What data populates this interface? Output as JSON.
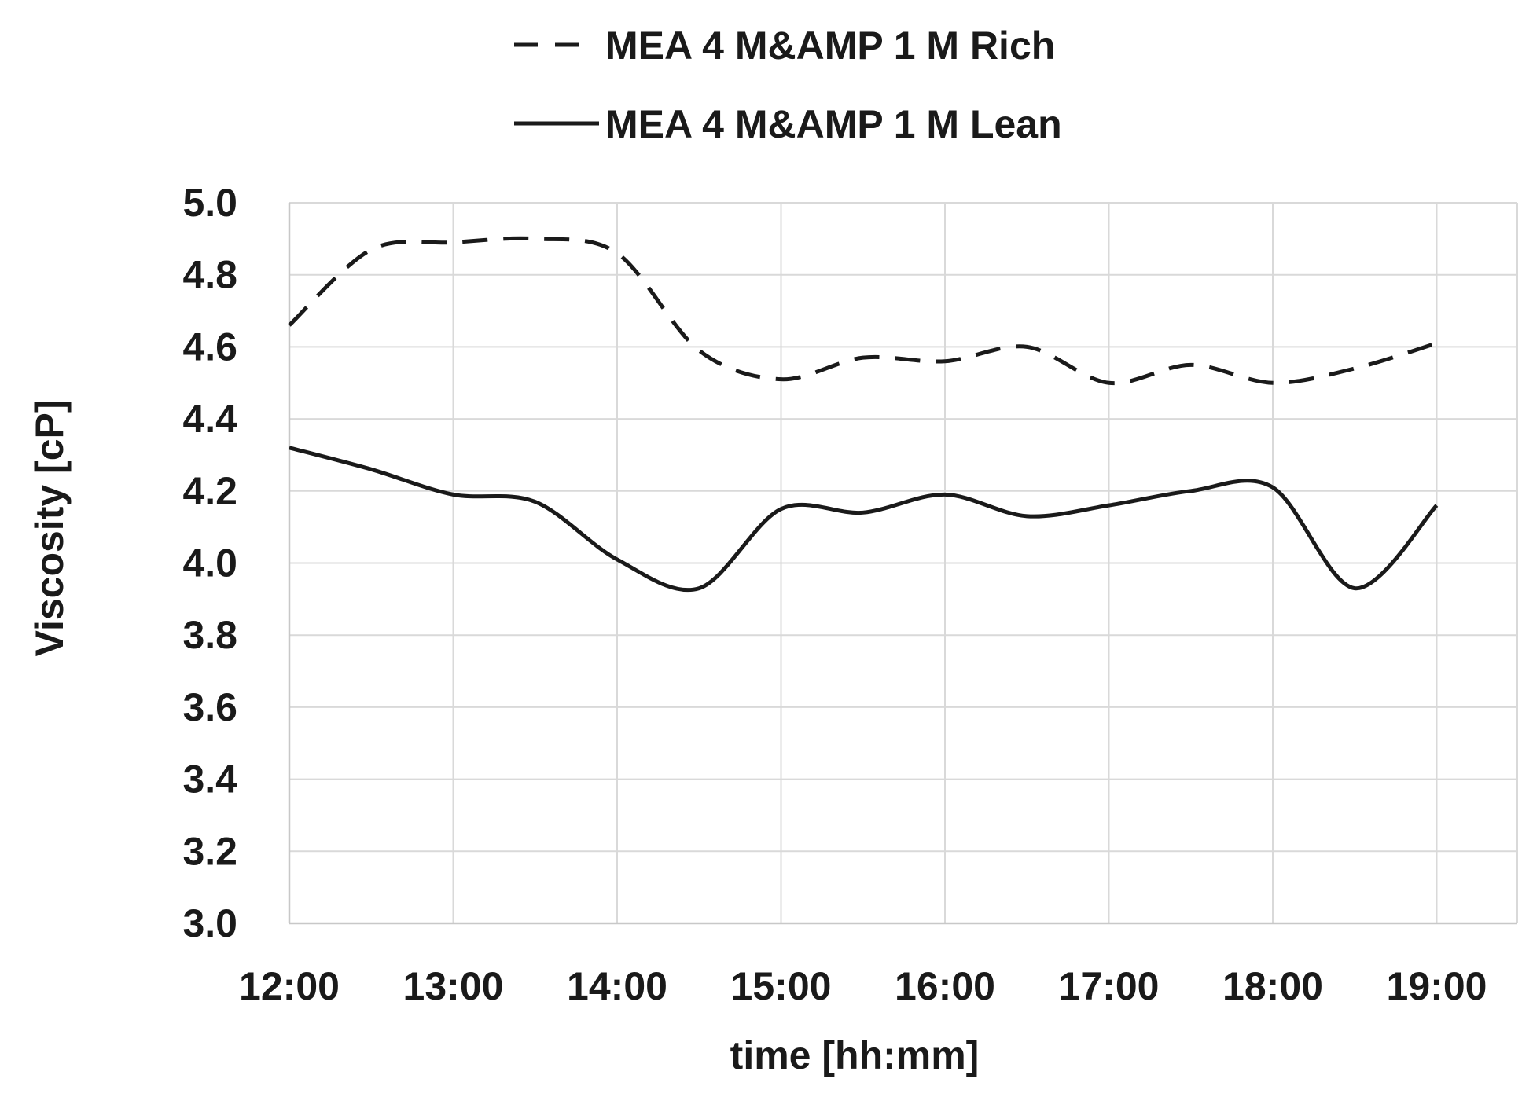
{
  "chart_data": {
    "type": "line",
    "xlabel": "time  [hh:mm]",
    "ylabel": "Viscosity [cP]",
    "x_ticks": [
      "12:00",
      "13:00",
      "14:00",
      "15:00",
      "16:00",
      "17:00",
      "18:00",
      "19:00"
    ],
    "y_ticks": [
      "3.0",
      "3.2",
      "3.4",
      "3.6",
      "3.8",
      "4.0",
      "4.2",
      "4.4",
      "4.6",
      "4.8",
      "5.0"
    ],
    "xlim": [
      "12:00",
      "19:00"
    ],
    "ylim": [
      3.0,
      5.0
    ],
    "grid": true,
    "legend_position": "top",
    "series": [
      {
        "name": "MEA 4 M&AMP 1 M Rich",
        "line_style": "dashed",
        "color": "#1a1a1a",
        "x": [
          "12:00",
          "12:30",
          "13:00",
          "13:30",
          "14:00",
          "14:30",
          "15:00",
          "15:30",
          "16:00",
          "16:30",
          "17:00",
          "17:30",
          "18:00",
          "18:30",
          "19:00"
        ],
        "y": [
          4.66,
          4.87,
          4.89,
          4.9,
          4.86,
          4.59,
          4.51,
          4.57,
          4.56,
          4.6,
          4.5,
          4.55,
          4.5,
          4.54,
          4.61
        ]
      },
      {
        "name": "MEA 4 M&AMP 1 M Lean",
        "line_style": "solid",
        "color": "#1a1a1a",
        "x": [
          "12:00",
          "12:30",
          "13:00",
          "13:30",
          "14:00",
          "14:30",
          "15:00",
          "15:30",
          "16:00",
          "16:30",
          "17:00",
          "17:30",
          "18:00",
          "18:30",
          "19:00"
        ],
        "y": [
          4.32,
          4.26,
          4.19,
          4.17,
          4.01,
          3.93,
          4.15,
          4.14,
          4.19,
          4.13,
          4.16,
          4.2,
          4.21,
          3.93,
          4.16
        ]
      }
    ]
  }
}
